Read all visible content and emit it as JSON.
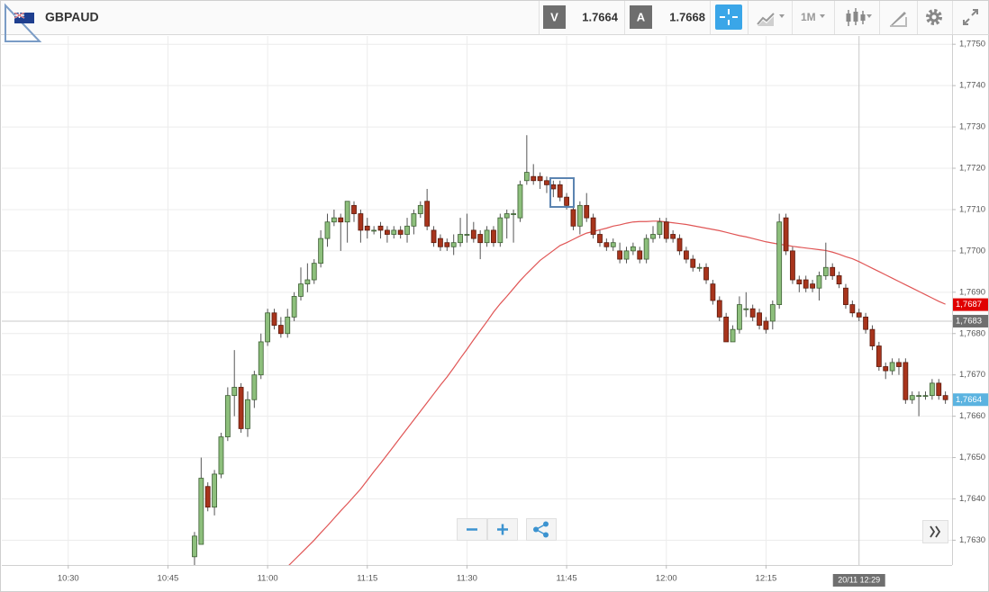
{
  "toolbar": {
    "symbol": "GBPAUD",
    "bid_label": "V",
    "bid": 1.7664,
    "ask_label": "A",
    "ask": 1.7668,
    "timeframe": "1M"
  },
  "chart_data": {
    "type": "candlestick",
    "x": [
      "10:49",
      "10:50",
      "10:51",
      "10:52",
      "10:53",
      "10:54",
      "10:55",
      "10:56",
      "10:57",
      "10:58",
      "10:59",
      "11:00",
      "11:01",
      "11:02",
      "11:03",
      "11:04",
      "11:05",
      "11:06",
      "11:07",
      "11:08",
      "11:09",
      "11:10",
      "11:11",
      "11:12",
      "11:13",
      "11:14",
      "11:15",
      "11:16",
      "11:17",
      "11:18",
      "11:19",
      "11:20",
      "11:21",
      "11:22",
      "11:23",
      "11:24",
      "11:25",
      "11:26",
      "11:27",
      "11:28",
      "11:29",
      "11:30",
      "11:31",
      "11:32",
      "11:33",
      "11:34",
      "11:35",
      "11:36",
      "11:37",
      "11:38",
      "11:39",
      "11:40",
      "11:41",
      "11:42",
      "11:43",
      "11:44",
      "11:45",
      "11:46",
      "11:47",
      "11:48",
      "11:49",
      "11:50",
      "11:51",
      "11:52",
      "11:53",
      "11:54",
      "11:55",
      "11:56",
      "11:57",
      "11:58",
      "11:59",
      "12:00",
      "12:01",
      "12:02",
      "12:03",
      "12:04",
      "12:05",
      "12:06",
      "12:07",
      "12:08",
      "12:09",
      "12:10",
      "12:11",
      "12:12",
      "12:13",
      "12:14",
      "12:15",
      "12:16",
      "12:17",
      "12:18",
      "12:19",
      "12:20",
      "12:21",
      "12:22",
      "12:23",
      "12:24",
      "12:25",
      "12:26",
      "12:27",
      "12:28",
      "12:29",
      "12:30",
      "12:31",
      "12:32",
      "12:33",
      "12:34",
      "12:35",
      "12:36",
      "12:37",
      "12:38",
      "12:39",
      "12:40",
      "12:41",
      "12:42"
    ],
    "open": [
      1.7626,
      1.7629,
      1.7643,
      1.7638,
      1.7646,
      1.7655,
      1.7665,
      1.7667,
      1.7657,
      1.7664,
      1.767,
      1.7678,
      1.7685,
      1.7682,
      1.768,
      1.7684,
      1.7689,
      1.7692,
      1.7693,
      1.7697,
      1.7703,
      1.7707,
      1.7708,
      1.7707,
      1.7711,
      1.7709,
      1.7706,
      1.7705,
      1.7706,
      1.7705,
      1.7704,
      1.7705,
      1.7704,
      1.7706,
      1.7709,
      1.7712,
      1.7705,
      1.7703,
      1.7702,
      1.7701,
      1.7702,
      1.7704,
      1.7705,
      1.7704,
      1.7702,
      1.7705,
      1.7702,
      1.7708,
      1.7709,
      1.7708,
      1.7717,
      1.7718,
      1.7718,
      1.7717,
      1.7716,
      1.7716,
      1.7713,
      1.771,
      1.7706,
      1.7711,
      1.7708,
      1.7704,
      1.7702,
      1.7701,
      1.77,
      1.7698,
      1.77,
      1.77,
      1.7698,
      1.7703,
      1.7704,
      1.7707,
      1.7704,
      1.7703,
      1.77,
      1.7698,
      1.7696,
      1.7696,
      1.7692,
      1.7688,
      1.7684,
      1.7678,
      1.7681,
      1.7686,
      1.7686,
      1.7685,
      1.7683,
      1.7683,
      1.7687,
      1.7708,
      1.77,
      1.7693,
      1.7693,
      1.7692,
      1.7691,
      1.7694,
      1.7696,
      1.7694,
      1.7691,
      1.7687,
      1.7685,
      1.7684,
      1.7681,
      1.7677,
      1.7672,
      1.7671,
      1.7673,
      1.7673,
      1.7664,
      1.7665,
      1.7665,
      1.7665,
      1.7668,
      1.7665
    ],
    "high": [
      1.7632,
      1.765,
      1.7644,
      1.7647,
      1.7656,
      1.7667,
      1.7676,
      1.7668,
      1.7666,
      1.7671,
      1.768,
      1.7686,
      1.7686,
      1.7684,
      1.7686,
      1.769,
      1.7696,
      1.7697,
      1.7698,
      1.7705,
      1.7709,
      1.771,
      1.7709,
      1.7712,
      1.7712,
      1.771,
      1.7708,
      1.7706,
      1.7707,
      1.7706,
      1.7706,
      1.7706,
      1.7708,
      1.771,
      1.7712,
      1.7715,
      1.7706,
      1.7704,
      1.7703,
      1.7704,
      1.7708,
      1.7709,
      1.7707,
      1.7705,
      1.7706,
      1.7706,
      1.7709,
      1.771,
      1.771,
      1.7717,
      1.7728,
      1.7721,
      1.7719,
      1.7718,
      1.7717,
      1.7717,
      1.7714,
      1.7711,
      1.7712,
      1.7714,
      1.7709,
      1.7705,
      1.7703,
      1.7703,
      1.7702,
      1.7701,
      1.7702,
      1.7701,
      1.7704,
      1.7706,
      1.7708,
      1.7708,
      1.7705,
      1.7704,
      1.7701,
      1.7699,
      1.7697,
      1.7697,
      1.7693,
      1.7689,
      1.7685,
      1.7682,
      1.7689,
      1.769,
      1.7687,
      1.7686,
      1.7684,
      1.7688,
      1.7709,
      1.7709,
      1.7701,
      1.7694,
      1.7694,
      1.7693,
      1.7695,
      1.7702,
      1.7697,
      1.7695,
      1.7692,
      1.7688,
      1.7686,
      1.7685,
      1.7682,
      1.7678,
      1.7673,
      1.7674,
      1.7674,
      1.7674,
      1.7666,
      1.7666,
      1.7666,
      1.7669,
      1.7669,
      1.7666
    ],
    "low": [
      1.762,
      1.7629,
      1.7637,
      1.7636,
      1.7645,
      1.7654,
      1.766,
      1.7656,
      1.7655,
      1.7662,
      1.7669,
      1.7677,
      1.7681,
      1.7679,
      1.7679,
      1.7683,
      1.7688,
      1.769,
      1.7692,
      1.7696,
      1.7701,
      1.7706,
      1.77,
      1.7702,
      1.7707,
      1.7702,
      1.7703,
      1.7704,
      1.7703,
      1.7702,
      1.7703,
      1.7703,
      1.7702,
      1.7704,
      1.7708,
      1.7705,
      1.7701,
      1.77,
      1.77,
      1.7699,
      1.7701,
      1.7702,
      1.7702,
      1.7698,
      1.7701,
      1.7701,
      1.7701,
      1.7703,
      1.7702,
      1.7707,
      1.7716,
      1.7716,
      1.7715,
      1.7714,
      1.7713,
      1.7712,
      1.771,
      1.7705,
      1.7704,
      1.7707,
      1.7703,
      1.7701,
      1.77,
      1.77,
      1.7697,
      1.7697,
      1.7699,
      1.7697,
      1.7697,
      1.7702,
      1.7703,
      1.7702,
      1.7702,
      1.7699,
      1.7697,
      1.7695,
      1.7695,
      1.7692,
      1.7687,
      1.7683,
      1.7678,
      1.7678,
      1.768,
      1.7684,
      1.7683,
      1.7681,
      1.768,
      1.7681,
      1.7686,
      1.7699,
      1.7692,
      1.769,
      1.769,
      1.769,
      1.7688,
      1.7693,
      1.7693,
      1.7691,
      1.7686,
      1.7684,
      1.7683,
      1.768,
      1.7676,
      1.7671,
      1.7669,
      1.767,
      1.767,
      1.7663,
      1.7663,
      1.766,
      1.7664,
      1.7664,
      1.7664,
      1.7663
    ],
    "close": [
      1.7631,
      1.7645,
      1.7638,
      1.7646,
      1.7655,
      1.7665,
      1.7667,
      1.7657,
      1.7664,
      1.767,
      1.7678,
      1.7685,
      1.7682,
      1.768,
      1.7684,
      1.7689,
      1.7692,
      1.7693,
      1.7697,
      1.7703,
      1.7707,
      1.7708,
      1.7707,
      1.7712,
      1.7709,
      1.7705,
      1.7705,
      1.7705,
      1.7705,
      1.7704,
      1.7705,
      1.7704,
      1.7706,
      1.7709,
      1.7711,
      1.7706,
      1.7702,
      1.7701,
      1.7701,
      1.7702,
      1.7704,
      1.7704,
      1.7703,
      1.7702,
      1.7705,
      1.7702,
      1.7708,
      1.7709,
      1.7709,
      1.7716,
      1.7719,
      1.7717,
      1.7717,
      1.7716,
      1.7715,
      1.7713,
      1.7711,
      1.7706,
      1.7711,
      1.7708,
      1.7704,
      1.7702,
      1.7701,
      1.7702,
      1.7698,
      1.77,
      1.7701,
      1.7698,
      1.7703,
      1.7704,
      1.7707,
      1.7703,
      1.7703,
      1.77,
      1.7698,
      1.7696,
      1.7696,
      1.7693,
      1.7688,
      1.7684,
      1.7678,
      1.7681,
      1.7687,
      1.7686,
      1.7684,
      1.7682,
      1.7681,
      1.7687,
      1.7707,
      1.77,
      1.7693,
      1.7692,
      1.7691,
      1.7691,
      1.7694,
      1.7696,
      1.7694,
      1.7692,
      1.7687,
      1.7685,
      1.7684,
      1.7681,
      1.7677,
      1.7672,
      1.7671,
      1.7673,
      1.7672,
      1.7664,
      1.7665,
      1.7665,
      1.7665,
      1.7668,
      1.7665,
      1.7664
    ],
    "up_color": "#8dbf7c",
    "down_color": "#a8341c",
    "moving_average": {
      "color": "#e05555",
      "values": [
        null,
        null,
        null,
        null,
        null,
        null,
        null,
        null,
        null,
        null,
        null,
        null,
        null,
        null,
        1.76236,
        1.76252,
        1.76268,
        1.76284,
        1.763,
        1.76318,
        1.76335,
        1.76353,
        1.76371,
        1.76388,
        1.76406,
        1.76424,
        1.76445,
        1.76466,
        1.76486,
        1.76507,
        1.76528,
        1.76549,
        1.7657,
        1.76591,
        1.76612,
        1.76633,
        1.76654,
        1.76675,
        1.76695,
        1.76717,
        1.7674,
        1.76762,
        1.76785,
        1.76807,
        1.76829,
        1.76852,
        1.76872,
        1.7689,
        1.76909,
        1.76928,
        1.76945,
        1.76961,
        1.76977,
        1.76989,
        1.77001,
        1.77013,
        1.7702,
        1.77028,
        1.77036,
        1.77043,
        1.77047,
        1.77051,
        1.77055,
        1.7706,
        1.77063,
        1.77067,
        1.7707,
        1.77071,
        1.77071,
        1.77072,
        1.77072,
        1.7707,
        1.77068,
        1.77066,
        1.77064,
        1.77061,
        1.77058,
        1.77055,
        1.77052,
        1.77049,
        1.77045,
        1.77041,
        1.77037,
        1.77034,
        1.7703,
        1.77026,
        1.77022,
        1.77019,
        1.77016,
        1.77014,
        1.77011,
        1.77009,
        1.77007,
        1.77005,
        1.77003,
        1.77001,
        1.76997,
        1.76992,
        1.76986,
        1.76981,
        1.76974,
        1.76966,
        1.76958,
        1.7695,
        1.76942,
        1.76934,
        1.76926,
        1.76918,
        1.7691,
        1.76902,
        1.76894,
        1.76886,
        1.76878,
        1.76871
      ]
    },
    "xlim": [
      "10:20",
      "12:43"
    ],
    "xticks": [
      "10:30",
      "10:45",
      "11:00",
      "11:15",
      "11:30",
      "11:45",
      "12:00",
      "12:15"
    ],
    "ylim": [
      1.7624,
      1.7752
    ],
    "yticks": [
      {
        "value": 1.763,
        "label": "1,7630"
      },
      {
        "value": 1.764,
        "label": "1,7640"
      },
      {
        "value": 1.765,
        "label": "1,7650"
      },
      {
        "value": 1.766,
        "label": "1,7660"
      },
      {
        "value": 1.767,
        "label": "1,7670"
      },
      {
        "value": 1.768,
        "label": "1,7680"
      },
      {
        "value": 1.769,
        "label": "1,7690"
      },
      {
        "value": 1.77,
        "label": "1,7700"
      },
      {
        "value": 1.771,
        "label": "1,7710"
      },
      {
        "value": 1.772,
        "label": "1,7720"
      },
      {
        "value": 1.773,
        "label": "1,7730"
      },
      {
        "value": 1.774,
        "label": "1,7740"
      },
      {
        "value": 1.775,
        "label": "1,7750"
      }
    ],
    "grid": true,
    "price_labels": [
      {
        "value": 1.7687,
        "label": "1,7687",
        "color": "#e00000"
      },
      {
        "value": 1.7664,
        "label": "1,7664",
        "color": "#5bb3e0"
      }
    ],
    "crosshair": {
      "time_label": "20/11 12:29",
      "price": {
        "value": 1.7683,
        "label": "1,7683",
        "color": "#6f6f6f"
      }
    }
  }
}
